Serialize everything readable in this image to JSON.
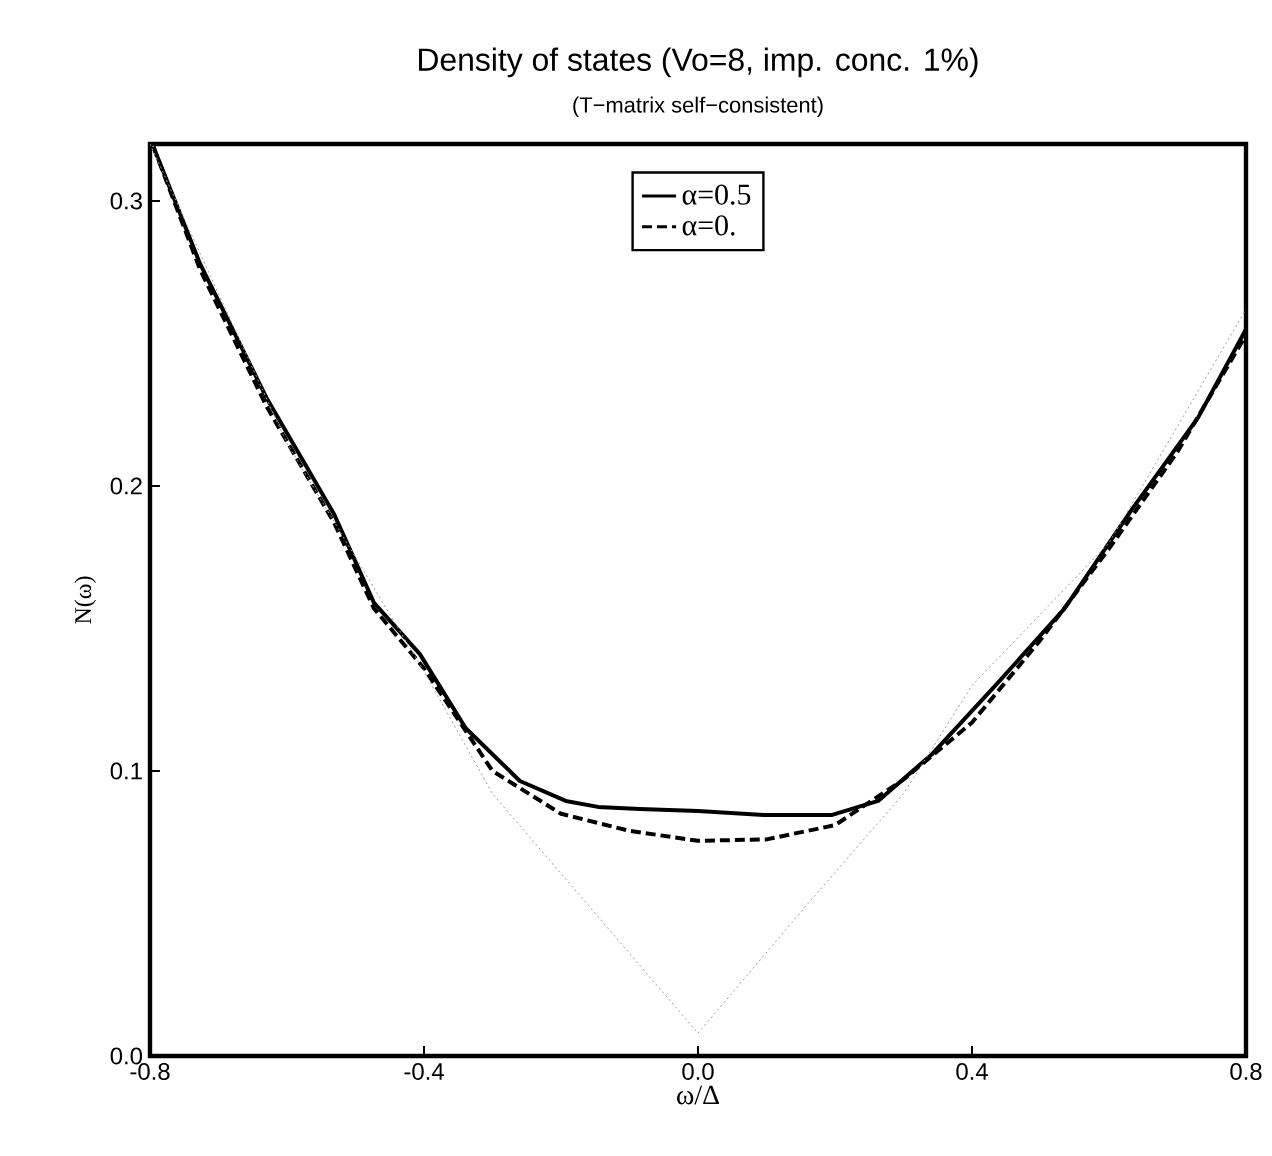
{
  "chart_data": {
    "type": "line",
    "title": "Density of states (Vo=8, imp. conc. 1%)",
    "subtitle": "(T−matrix self−consistent)",
    "xlabel": "ω/Δ",
    "ylabel": "N(ω)",
    "xlim": [
      -0.8,
      0.8
    ],
    "ylim": [
      0,
      0.32
    ],
    "xticks": [
      -0.8,
      -0.4,
      {
        "value": 0,
        "label": "0.0"
      },
      0.4,
      0.8
    ],
    "yticks": [
      {
        "value": 0,
        "label": "0.0"
      },
      0.1,
      0.2,
      0.3
    ],
    "legend": "top",
    "marker": "none",
    "grid": false,
    "series": [
      {
        "name": "α=0.5",
        "color": "#000000",
        "line_style": "solid",
        "x": [
          -0.795,
          -0.727,
          -0.63,
          -0.531,
          -0.473,
          -0.406,
          -0.339,
          -0.26,
          -0.193,
          -0.146,
          -0.085,
          0.0,
          0.096,
          0.196,
          0.263,
          0.342,
          0.438,
          0.535,
          0.634,
          0.73,
          0.8
        ],
        "values": [
          0.319,
          0.278,
          0.231,
          0.19,
          0.159,
          0.141,
          0.115,
          0.0965,
          0.0895,
          0.0874,
          0.0867,
          0.086,
          0.0846,
          0.0846,
          0.0895,
          0.106,
          0.131,
          0.157,
          0.192,
          0.224,
          0.255
        ]
      },
      {
        "name": "α=0.",
        "color": "#000000",
        "line_style": "dashed",
        "x": [
          -0.795,
          -0.727,
          -0.63,
          -0.531,
          -0.473,
          -0.4,
          -0.3,
          -0.2,
          -0.1,
          0.0,
          0.1,
          0.2,
          0.3,
          0.4,
          0.5,
          0.6,
          0.7,
          0.8
        ],
        "values": [
          0.319,
          0.276,
          0.228,
          0.187,
          0.157,
          0.136,
          0.1,
          0.085,
          0.079,
          0.0755,
          0.076,
          0.081,
          0.097,
          0.117,
          0.146,
          0.178,
          0.212,
          0.253
        ]
      },
      {
        "color": "#999999",
        "line_style": "dotted",
        "x": [
          -0.8,
          -0.6,
          -0.4,
          -0.3,
          -0.166,
          0.0,
          0.166,
          0.3,
          0.4,
          0.6,
          0.8
        ],
        "values": [
          0.32,
          0.215,
          0.135,
          0.092,
          0.0545,
          0.008,
          0.055,
          0.092,
          0.13,
          0.18,
          0.262
        ]
      }
    ]
  }
}
